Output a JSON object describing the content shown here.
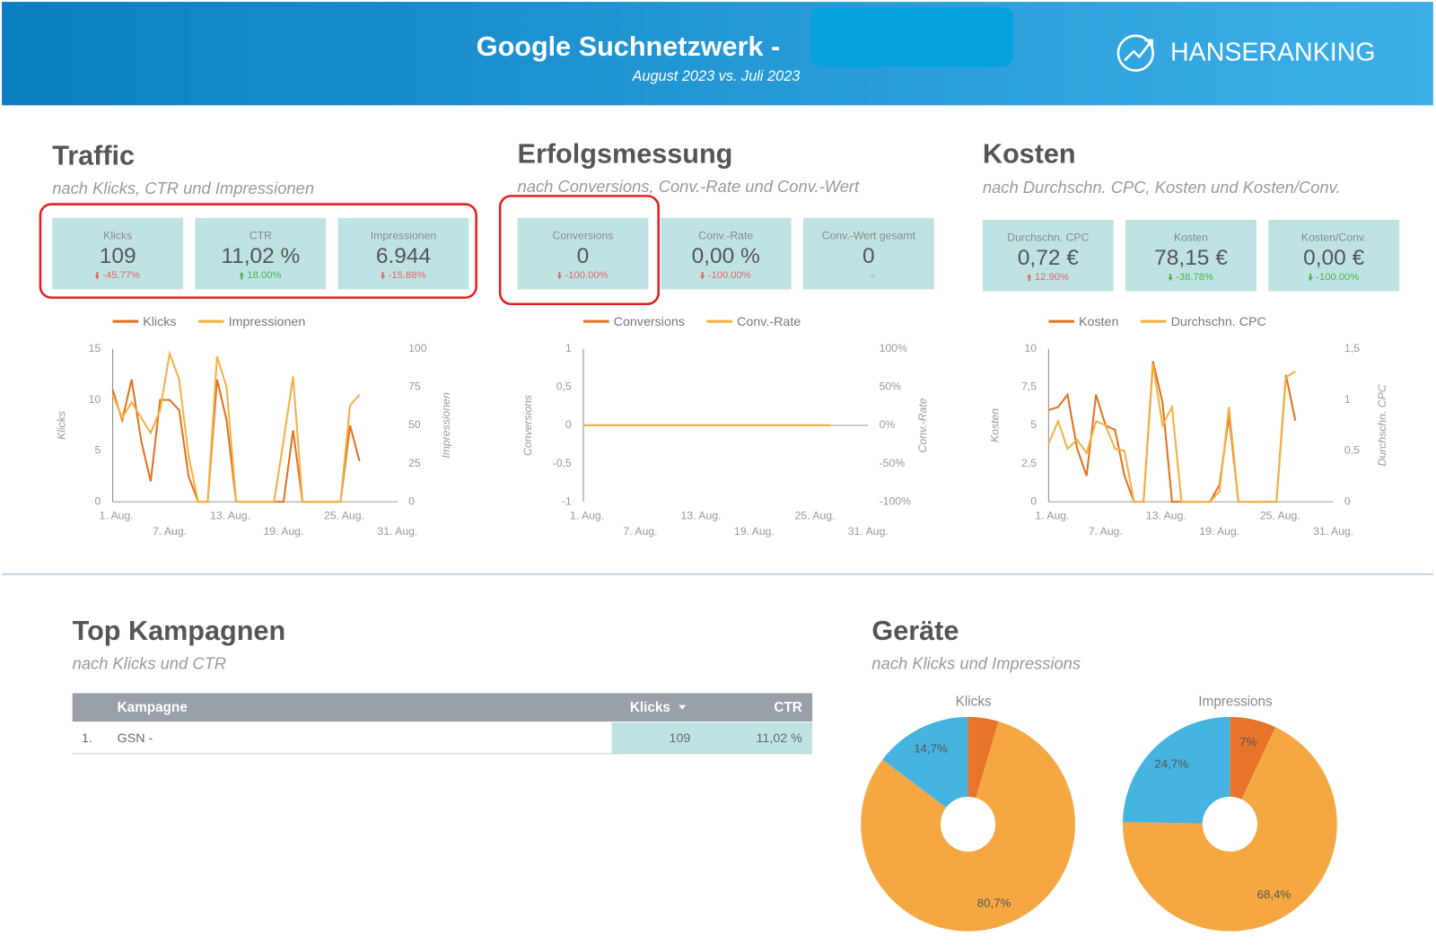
{
  "header": {
    "title": "Google Suchnetzwerk -",
    "subtitle": "August 2023 vs. Juli 2023",
    "logo": "HANSERANKING"
  },
  "sections": [
    {
      "title": "Traffic",
      "subtitle": "nach Klicks, CTR und Impressionen",
      "kpis": [
        {
          "label": "Klicks",
          "value": "109",
          "change": "-45.77%",
          "change_color": "#e06666"
        },
        {
          "label": "CTR",
          "value": "11,02 %",
          "change": "18.00%",
          "change_color": "#4caf50"
        },
        {
          "label": "Impressionen",
          "value": "6.944",
          "change": "-15.88%",
          "change_color": "#e06666"
        }
      ]
    },
    {
      "title": "Erfolgsmessung",
      "subtitle": "nach Conversions, Conv.-Rate und Conv.-Wert",
      "kpis": [
        {
          "label": "Conversions",
          "value": "0",
          "change": "-100.00%",
          "change_color": "#e06666"
        },
        {
          "label": "Conv.-Rate",
          "value": "0,00 %",
          "change": "-100.00%",
          "change_color": "#e06666"
        },
        {
          "label": "Conv.-Wert gesamt",
          "value": "0",
          "change": "–",
          "change_color": "#999999"
        }
      ]
    },
    {
      "title": "Kosten",
      "subtitle": "nach Durchschn. CPC, Kosten und Kosten/Conv.",
      "kpis": [
        {
          "label": "Durchschn. CPC",
          "value": "0,72 €",
          "change": "12.90%",
          "change_color": "#e06666"
        },
        {
          "label": "Kosten",
          "value": "78,15 €",
          "change": "-38.78%",
          "change_color": "#4caf50"
        },
        {
          "label": "Kosten/Conv.",
          "value": "0,00 €",
          "change": "-100.00%",
          "change_color": "#4caf50"
        }
      ]
    },
    {
      "title": "Top Kampagnen",
      "subtitle": "nach Klicks und CTR"
    },
    {
      "title": "Geräte",
      "subtitle": "nach Klicks und Impressions"
    }
  ],
  "table": {
    "columns": [
      "Kampagne",
      "Klicks",
      "CTR"
    ],
    "rows": [
      [
        "1.",
        "GSN -",
        "109",
        "11,02 %"
      ]
    ]
  },
  "chart_data": [
    {
      "type": "line",
      "categories": [
        "1. Aug.",
        null,
        null,
        null,
        null,
        null,
        "7. Aug.",
        null,
        null,
        null,
        null,
        null,
        "13. Aug.",
        null,
        null,
        null,
        null,
        null,
        "19. Aug.",
        null,
        null,
        null,
        null,
        null,
        "25. Aug.",
        null,
        null,
        null,
        null,
        null,
        "31. Aug."
      ],
      "ylabel": "Klicks",
      "y2label": "Impressionen",
      "ylim": [
        0,
        15
      ],
      "yticks": [
        0,
        5,
        10,
        15
      ],
      "y2lim": [
        0,
        100
      ],
      "y2ticks": [
        0,
        25,
        50,
        75,
        100
      ],
      "series": [
        {
          "name": "Klicks",
          "color": "#e2711d",
          "axis": "y",
          "values": [
            11,
            8,
            12,
            6,
            2,
            10,
            10,
            9,
            2.5,
            0,
            0,
            12,
            8,
            0,
            0,
            0,
            0,
            0,
            0,
            7,
            0,
            0,
            0,
            0,
            0,
            7.5,
            4,
            null,
            null,
            null,
            null
          ]
        },
        {
          "name": "Impressionen",
          "color": "#f5b041",
          "axis": "y2",
          "values": [
            70,
            55,
            65,
            55,
            45,
            60,
            97,
            80,
            30,
            0,
            0,
            95,
            75,
            0,
            0,
            0,
            0,
            0,
            40,
            82,
            0,
            0,
            0,
            0,
            0,
            63,
            70,
            null,
            null,
            null,
            null
          ]
        }
      ]
    },
    {
      "type": "line",
      "categories": [
        "1. Aug.",
        null,
        null,
        null,
        null,
        null,
        "7. Aug.",
        null,
        null,
        null,
        null,
        null,
        "13. Aug.",
        null,
        null,
        null,
        null,
        null,
        "19. Aug.",
        null,
        null,
        null,
        null,
        null,
        "25. Aug.",
        null,
        null,
        null,
        null,
        null,
        "31. Aug."
      ],
      "ylabel": "Conversions",
      "y2label": "Conv.-Rate",
      "ylim": [
        -1,
        1
      ],
      "yticks": [
        -1,
        {
          "value": -0.5,
          "label": "-0,5"
        },
        0,
        {
          "value": 0.5,
          "label": "0,5"
        },
        1
      ],
      "y2lim": [
        -100,
        100
      ],
      "y2ticks": [
        {
          "value": -100,
          "label": "-100%"
        },
        {
          "value": -50,
          "label": "-50%"
        },
        {
          "value": 0,
          "label": "0%"
        },
        {
          "value": 50,
          "label": "50%"
        },
        {
          "value": 100,
          "label": "100%"
        }
      ],
      "series": [
        {
          "name": "Conversions",
          "color": "#e2711d",
          "axis": "y",
          "values": [
            0,
            0,
            0,
            0,
            0,
            0,
            0,
            0,
            0,
            0,
            0,
            0,
            0,
            0,
            0,
            0,
            0,
            0,
            0,
            0,
            0,
            0,
            0,
            0,
            0,
            0,
            0,
            null,
            null,
            null,
            null
          ]
        },
        {
          "name": "Conv.-Rate",
          "color": "#f5b041",
          "axis": "y2",
          "values": [
            0,
            0,
            0,
            0,
            0,
            0,
            0,
            0,
            0,
            0,
            0,
            0,
            0,
            0,
            0,
            0,
            0,
            0,
            0,
            0,
            0,
            0,
            0,
            0,
            0,
            0,
            0,
            null,
            null,
            null,
            null
          ]
        }
      ]
    },
    {
      "type": "line",
      "categories": [
        "1. Aug.",
        null,
        null,
        null,
        null,
        null,
        "7. Aug.",
        null,
        null,
        null,
        null,
        null,
        "13. Aug.",
        null,
        null,
        null,
        null,
        null,
        "19. Aug.",
        null,
        null,
        null,
        null,
        null,
        "25. Aug.",
        null,
        null,
        null,
        null,
        null,
        "31. Aug."
      ],
      "ylabel": "Kosten",
      "y2label": "Durchschn. CPC",
      "ylim": [
        0,
        10
      ],
      "yticks": [
        0,
        {
          "value": 2.5,
          "label": "2,5"
        },
        5,
        {
          "value": 7.5,
          "label": "7,5"
        },
        10
      ],
      "y2lim": [
        0,
        1.5
      ],
      "y2ticks": [
        0,
        {
          "value": 0.5,
          "label": "0,5"
        },
        1,
        {
          "value": 1.5,
          "label": "1,5"
        }
      ],
      "series": [
        {
          "name": "Kosten",
          "color": "#e2711d",
          "axis": "y",
          "values": [
            6,
            6.2,
            7,
            3.5,
            1.7,
            7,
            5,
            4.7,
            1.7,
            0,
            0,
            9.2,
            6.5,
            0,
            0,
            0,
            0,
            0,
            1.1,
            5.6,
            0,
            0,
            0,
            0,
            0,
            8.3,
            5.3,
            null,
            null,
            null,
            null
          ]
        },
        {
          "name": "Durchschn. CPC",
          "color": "#f5b041",
          "axis": "y2",
          "values": [
            0.57,
            0.79,
            0.52,
            0.61,
            0.48,
            0.79,
            0.75,
            0.52,
            0.5,
            0,
            0,
            1.35,
            0.75,
            0.93,
            0,
            0,
            0,
            0,
            0.1,
            0.93,
            0,
            0,
            0,
            0,
            0,
            1.22,
            1.28,
            null,
            null,
            null,
            null
          ]
        }
      ]
    },
    {
      "type": "pie",
      "title": "Klicks",
      "values": [
        4.6,
        80.7,
        14.7
      ],
      "value_labels": [
        null,
        "80,7%",
        "14,7%"
      ],
      "colors": [
        "#e8732a",
        "#f5a742",
        "#45b3e0"
      ]
    },
    {
      "type": "pie",
      "title": "Impressions",
      "values": [
        7,
        68.4,
        24.7
      ],
      "value_labels": [
        "7%",
        "68,4%",
        "24,7%"
      ],
      "colors": [
        "#e8732a",
        "#f5a742",
        "#45b3e0"
      ]
    }
  ]
}
